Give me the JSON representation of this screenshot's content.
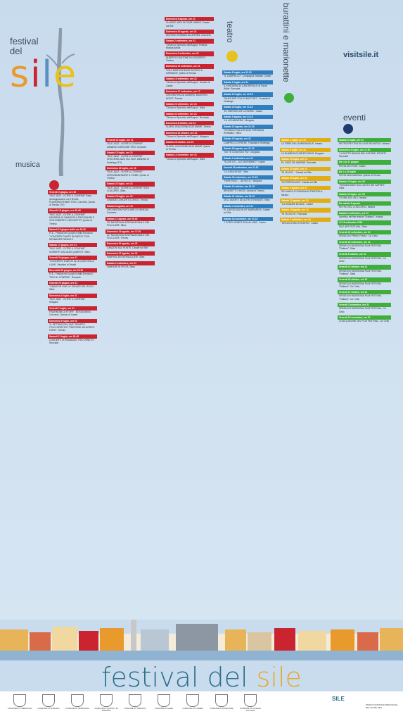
{
  "logo": {
    "line1": "festival",
    "line2": "del",
    "sile": "sile"
  },
  "site": "visitsile.it",
  "categories": {
    "musica": "musica",
    "teatro": "teatro",
    "burattini": "burattini e marionette",
    "eventi": "eventi"
  },
  "columns": {
    "musica": [
      {
        "h": "Venerdì 9 giugno, ore 20",
        "b": "\"SILE JAZZ - OLTRE IL CONFINE\" Party d'inaugurazione con HELGA PLANKENSTEINER TRIO. Concerto. Quinto di Treviso (TV)"
      },
      {
        "h": "Giovedì 15 giugno, ore 20.45",
        "b": "\"SILE JAZZ - OLTRE IL CONFINE\" MEMORIA 10 OMAGGIO A PINO DANIELE CON ROBERTO CECCHETTO. Quinto di Treviso"
      },
      {
        "h": "Martedì 13 giugno dalle ore 18.30",
        "b": "FLE - Festival dei Luoghi e della Emozioni \"CONCERTI D'ARTE IN PARCO\" CON NEUBAUER PARACHI"
      },
      {
        "h": "Sabato 17 giugno, ore 21",
        "b": "\"SILE JAZZ - OLTRE IL CONFINE\" NORBERT DALSASS QUARTET. Silea"
      },
      {
        "h": "Venerdì 23 giugno, ore 21",
        "b": "\"CONCERTO D'ARCHI ALLA LUCE DELLA LUNA\". Musiche di Vivaldi"
      },
      {
        "h": "Mercoledì 28 giugno, ore 20.30",
        "b": "FLE - Festival dei Luoghi e della Emozioni \"SILE AL CONFINE\". Roncade"
      },
      {
        "h": "Giovedì 29 giugno, ore 21",
        "b": "\"OMAGGIO FINE LE SONATE DEL ROCK\". Silea"
      },
      {
        "h": "Domenica 2 luglio, ore 21",
        "b": "\"SILE JAZZ - OLTRE IL CONFINE\". Morgano"
      },
      {
        "h": "Venerdì 7 luglio, ore 21",
        "b": "FISARMONICA STORY - BOSSA BAND. Concerto. Dosson di Casier"
      },
      {
        "h": "Domenica 9 luglio, ore 21",
        "b": "\"IL SETTIMO DEL SILE\" GRUPPO FOLCLORISTICO \"PASTORAL DA BORGO FURO\". Treviso"
      },
      {
        "h": "Martedì 11 luglio, ore 20.45",
        "b": "CONCERTI DI ROMANZA \"TRIO VENETO\". Roncade"
      }
    ],
    "musica2": [
      {
        "h": "Venerdì 14 luglio, ore 21",
        "b": "\"SILE JAZZ - OLTRE IL CONFINE\" DANIELE GORGONE TRIO. Concerto"
      },
      {
        "h": "Sabato 15 luglio, ore 21",
        "b": "\"SILE JAZZ - OLTRE IL CONFINE\" CROCIERA JAZZ SUL SILE. Albaredo di Vedelago (TV)"
      },
      {
        "h": "Domenica 16 luglio, ore 18",
        "b": "\"SILE JAZZ - OLTRE IL CONFINE\" CIRCUMNAVIGARE IL FIUME. Quinto di Treviso"
      },
      {
        "h": "Sabato 22 luglio, ore 21",
        "b": "\"SILE JAZZ - OLTRE IL CONFINE\" IDEA CONCERTI. Silea"
      },
      {
        "h": "Sabato 29 luglio, ore 21",
        "b": "GRANDE CONCERTO LIRICO. Treviso"
      },
      {
        "h": "Sabato 5 agosto, ore 21",
        "b": "ORCHESTRA POPOLARE DI VENEZIA. Concerto"
      },
      {
        "h": "Sabato 12 agosto, ore 20.30",
        "b": "20ª RASSEGNA INTERNAZIONALE DEL FOLCLORE. Silea"
      },
      {
        "h": "Domenica 13 agosto, ore 17.30",
        "b": "21ª RASSEGNA INTERNAZIONALE DEL FOLCLORE. Treviso"
      },
      {
        "h": "Domenica 20 agosto, ore 21",
        "b": "CANZONI SUL PONTE. Casale sul Sile"
      },
      {
        "h": "Domenica 27 agosto, ore 21",
        "b": "FANFARA DEI BERSAGLIERI. Silea"
      },
      {
        "h": "Sabato 2 settembre, ore 21",
        "b": "FANFARE IN FESTA. Silea"
      }
    ],
    "musica3": [
      {
        "h": "Domenica 6 agosto, ore 21",
        "b": "CLASSIC JAZZ IN FOUR HANDS. Casale sul Sile"
      },
      {
        "h": "Domenica 20 agosto, ore 21",
        "b": "ANTONIO GRIMANI ALLEGREN. Concerto"
      },
      {
        "h": "Sabato 2 settembre, ore 21",
        "b": "\"Chiaro lo Specchio dell'Acqua\" Festival Musica Antica"
      },
      {
        "h": "Domenica 3 settembre, ore 21",
        "b": "ALBERTO CANTONE IN CONCERTO. Treviso"
      },
      {
        "h": "Domenica 10 settembre, ore 21",
        "b": "TOLO MARTON BAND IN ROCK & HARMONY. Quinto di Treviso"
      },
      {
        "h": "Sabato 16 settembre, ore 21",
        "b": "\"Chiaro lo Specchio dell'Acqua\". Dosson di Casier"
      },
      {
        "h": "Domenica 17 settembre, ore 17",
        "b": "ORCHESTRA DA CAMERA \"MAESTRO NOVO\". Treviso"
      },
      {
        "h": "Sabato 23 settembre, ore 21",
        "b": "\"Chiaro lo Specchio dell'Acqua\". Silea"
      },
      {
        "h": "Sabato 30 settembre, ore 21",
        "b": "\"Chiaro lo Specchio dell'Acqua\". Roncade"
      },
      {
        "h": "Domenica 8 ottobre, ore 21",
        "b": "CLARA, UNA DONNA DUE ANIME. Treviso"
      },
      {
        "h": "Domenica 22 ottobre, ore 21",
        "b": "\"Chiaro lo Specchio dell'Acqua\". Morgano"
      },
      {
        "h": "Sabato 28 ottobre, ore 21",
        "b": "CLARA, UNA DONNA DUE ANIME. Quinto di Treviso"
      },
      {
        "h": "Sabato 12 novembre, ore 21",
        "b": "\"Chiaro lo Specchio dell'Acqua\". Silea"
      }
    ],
    "teatro": [
      {
        "h": "Sabato 8 luglio, ore 21.15",
        "b": "\"IL CAMPIELLO\". Compagnia Teatrale. Casier"
      },
      {
        "h": "Sabato 9 luglio, ore 21",
        "b": "IL FANTASMA DI CANTERVILLE di Oscar Wilde. Roncade"
      },
      {
        "h": "Sabato 22 luglio, ore 21.15",
        "b": "\"WHAT ARE YOU DYING FOR?\". Fossalta di Vedelago"
      },
      {
        "h": "Sabato 29 luglio, ore 21.15",
        "b": "\"EL MORODO DE LA SIORA\". Casier"
      },
      {
        "h": "Sabato 5 agosto, ore 21.15",
        "b": "\"LA LOCANDIERA\". Morgano"
      },
      {
        "h": "Sabato 12 agosto, ore 21.15",
        "b": "\"STORIA D'ITALIA IN UNA TORRAZZA ROMANA\". Silea"
      },
      {
        "h": "Sabato 19 agosto, ore 21",
        "b": "CAMPIELLI DI PAESE. Fossalta di Vedelago"
      },
      {
        "h": "Sabato 26 agosto, ore 21.15",
        "b": "\"NO TE CONOSSO PIU\". Morgano"
      },
      {
        "h": "Sabato 2 settembre, ore 21",
        "b": "\"SCUSI LEI... UCCIDEREBBE?\". Casier"
      },
      {
        "h": "Venerdì 29 settembre, ore 21.15",
        "b": "\"LA CASA NOVA\". Silea"
      },
      {
        "h": "Sabato 30 settembre, ore 21.15",
        "b": "\"FARE PACE ... AD NO 11\". Morgano"
      },
      {
        "h": "Sabato 14 ottobre, ore 21.15",
        "b": "BENEDETTI CHIODI. Quinto di Treviso"
      },
      {
        "h": "Sabato 21 ottobre, ore 21.15",
        "b": "DELL'AMOR E DE ALTRI STRAFANTI. Silea"
      },
      {
        "h": "Sabato 4 novembre, ore 21",
        "b": "EL CAPOSTAZION DE BARBARIGA. Casale sul Sile"
      },
      {
        "h": "Sabato 18 novembre, ore 21.15",
        "b": "\"I PORCI VENETI SULLA LUNA\". Casier"
      }
    ],
    "burattini": [
      {
        "h": "Sabato 1 luglio, ore 21",
        "b": "LA FIERA DELLA MERAVIGLIE. Istrana"
      },
      {
        "h": "Sabato 8 luglio, ore 21",
        "b": "LA GUARDIA DI ARLECCHINO. Morgano"
      },
      {
        "h": "Sabato 15 luglio, ore 21",
        "b": "EL CASO DE NADENE. Roncade"
      },
      {
        "h": "Sabato 22 luglio, ore 21",
        "b": "\"SI VIA NO...\" Casale sul Sile"
      },
      {
        "h": "Sabato 29 luglio, ore 21",
        "b": "\"IN PORTELLINO\". Casale sul Sile"
      },
      {
        "h": "Sabato 5 agosto, ore 21",
        "b": "DEL MAGO DI SPAGNA IN TRAPPOLA. Istrana"
      },
      {
        "h": "Sabato 12 agosto, ore 21",
        "b": "\"LA GRANDE BOSCA\". Casier"
      },
      {
        "h": "Sabato 19 agosto, ore 21",
        "b": "\"SI VIA NO SI\". Roncade"
      },
      {
        "h": "Sabato 2 settembre, ore 21",
        "b": "\"ARLECCHINO A TEATRO\". Casier"
      }
    ],
    "eventi": [
      {
        "h": "Sabato 8 luglio, ore 21",
        "b": "RETROSPETTIVA SU LINO SELVATICO. Istrana"
      },
      {
        "h": "Domenica 9 luglio, ore 17.30",
        "b": "\"LA NOTTE BIANCA DEL SAPORE, ESTATE\". Roncade"
      },
      {
        "h": "Dal 4 al 17 giugno",
        "b": "FESTA DEI FIORI. Casier"
      },
      {
        "h": "Da 1 a 10 luglio",
        "b": "FESTA DEA SANGUA. Quinto di Treviso"
      },
      {
        "h": "Sabato 22 luglio, ore 20",
        "b": "\"PASSEGGIATE SUL GUSTO DEI SAPORI\". Silea"
      },
      {
        "h": "Sabato 30 luglio, ore 20",
        "b": "STORIA DEL SILE. Istrana"
      },
      {
        "h": "Da sabato 5 agosto",
        "b": "RETRO DEL CONCORSO. Istrana"
      },
      {
        "h": "Sabato 9 settembre, ore 21",
        "b": "Aperitivo del film festival \"Flatland\". Istrana"
      },
      {
        "h": "17-18 settembre 2016",
        "b": "SILE ART FESTIVAL. Silea"
      },
      {
        "h": "Venerdì 22 settembre, ore 21",
        "b": "SERATA IN PRIMO PIANO. Ca' Celio"
      },
      {
        "h": "Venerdì 29 settembre, ore 21",
        "b": "SERATA DI RASSEGNA FILM FESTIVAL \"Flatland\". Silea"
      },
      {
        "h": "Venerdì 6 ottobre, ore 21",
        "b": "SERATA IN RASSEGNA FILM FESTIVAL. Ca' Celio"
      },
      {
        "h": "Venerdì 13 ottobre, ore 21",
        "b": "SERATA IN RASSEGNA FILM FESTIVAL \"Flatland\". Silea"
      },
      {
        "h": "Venerdì 20 ottobre, ore 21",
        "b": "SERATA IN RASSEGNA FILM FESTIVAL \"Flatland\". Ca' Celio"
      },
      {
        "h": "Venerdì 27 ottobre, ore 21",
        "b": "SERATA IN RASSEGNA FILM FESTIVAL \"Flatland\". Ca' Celio"
      },
      {
        "h": "Venerdì 3 novembre, ore 21",
        "b": "SERATA IN RASSEGNA FILM FESTIVAL. Ca' Celio"
      },
      {
        "h": "Venerdì 10 novembre, ore 21",
        "b": "CONCLUSIONE DEL FILM FESTIVAL. Ca' Celio"
      }
    ]
  },
  "bottom_title": {
    "pre": "festival del ",
    "sile": "sile"
  },
  "comuni": [
    "COMUNE DI VEDELAGO",
    "COMUNE DI ISTRANA",
    "COMUNE DI MORGANO",
    "COMUNE DI QUINTO DI TREVISO",
    "COMUNE DI TREVISO",
    "COMUNE DI SILEA",
    "COMUNE DI CASIER",
    "COMUNE DI RONCADE",
    "COMUNE DI CASALE SUL SILE"
  ],
  "sponsors": {
    "sile_text": "SILE",
    "parco": "PARCO NATURALE REGIONALE DEL FIUME SILE"
  }
}
